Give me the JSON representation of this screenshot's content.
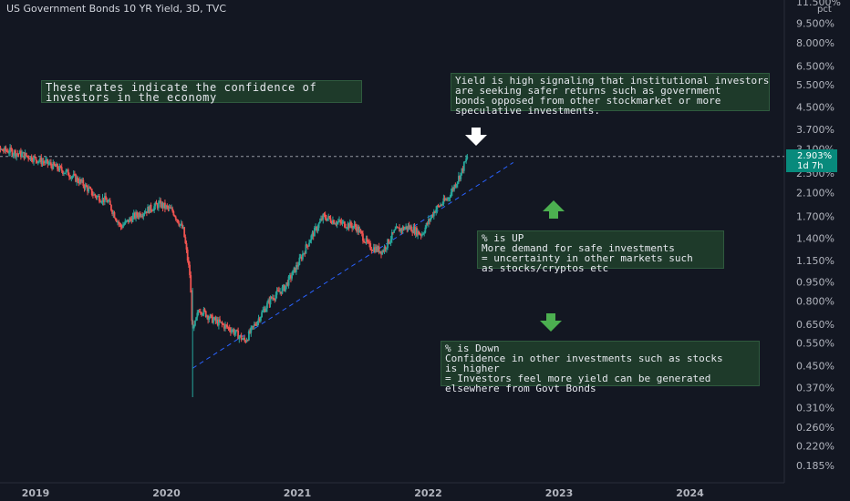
{
  "title": "US Government Bonds 10 YR Yield, 3D, TVC",
  "price_label": {
    "value": "2.903%",
    "countdown": "1d 7h"
  },
  "unit": "pct",
  "annotations": {
    "confidence": [
      "These rates indicate the confidence of",
      "investors in the economy"
    ],
    "yield_high": [
      "Yield is high signaling that institutional investors",
      "are seeking safer returns such as government",
      "bonds opposed from other stockmarket or more",
      "speculative investments."
    ],
    "pct_up": [
      "% is UP",
      "More demand for safe investments",
      "= uncertainty in other markets such",
      "as stocks/cryptos etc"
    ],
    "pct_down": [
      "% is Down",
      "Confidence in other investments such as stocks",
      "is higher",
      "= Investors feel more yield can be generated",
      "elsewhere from Govt Bonds"
    ]
  },
  "colors": {
    "up": "#26a69a",
    "down": "#ef5350",
    "background": "#131722",
    "arrow_green": "#4caf50",
    "arrow_white": "#ffffff",
    "trendline": "#2962ff",
    "note_bg": "#1e3a2a"
  },
  "chart_data": {
    "type": "candlestick",
    "title": "US Government Bonds 10 YR Yield, 3D, TVC",
    "y_scale": "log",
    "ylim": [
      0.17,
      11.5
    ],
    "x_ticks": [
      "2019",
      "2020",
      "2021",
      "2022",
      "2023",
      "2024"
    ],
    "y_ticks": [
      "11.500%",
      "9.500%",
      "8.000%",
      "6.500%",
      "5.500%",
      "4.500%",
      "3.700%",
      "3.100%",
      "2.500%",
      "2.100%",
      "1.700%",
      "1.400%",
      "1.150%",
      "0.950%",
      "0.800%",
      "0.650%",
      "0.550%",
      "0.450%",
      "0.370%",
      "0.310%",
      "0.260%",
      "0.220%",
      "0.185%"
    ],
    "y_tick_values": [
      11.5,
      9.5,
      8.0,
      6.5,
      5.5,
      4.5,
      3.7,
      3.1,
      2.5,
      2.1,
      1.7,
      1.4,
      1.15,
      0.95,
      0.8,
      0.65,
      0.55,
      0.45,
      0.37,
      0.31,
      0.26,
      0.22,
      0.185
    ],
    "last_value": 2.903,
    "price_line": 2.903,
    "series": [
      {
        "name": "",
        "values": [
          {
            "t": 2018.6,
            "v": 3.1
          },
          {
            "t": 2018.8,
            "v": 3.05
          },
          {
            "t": 2018.95,
            "v": 2.9
          },
          {
            "t": 2019.1,
            "v": 2.72
          },
          {
            "t": 2019.25,
            "v": 2.5
          },
          {
            "t": 2019.35,
            "v": 2.3
          },
          {
            "t": 2019.45,
            "v": 2.05
          },
          {
            "t": 2019.55,
            "v": 1.95
          },
          {
            "t": 2019.65,
            "v": 1.55
          },
          {
            "t": 2019.75,
            "v": 1.7
          },
          {
            "t": 2019.85,
            "v": 1.8
          },
          {
            "t": 2019.95,
            "v": 1.9
          },
          {
            "t": 2020.05,
            "v": 1.78
          },
          {
            "t": 2020.13,
            "v": 1.5
          },
          {
            "t": 2020.18,
            "v": 1.0
          },
          {
            "t": 2020.2,
            "v": 0.6
          },
          {
            "t": 2020.25,
            "v": 0.75
          },
          {
            "t": 2020.35,
            "v": 0.68
          },
          {
            "t": 2020.5,
            "v": 0.62
          },
          {
            "t": 2020.6,
            "v": 0.56
          },
          {
            "t": 2020.7,
            "v": 0.68
          },
          {
            "t": 2020.8,
            "v": 0.82
          },
          {
            "t": 2020.9,
            "v": 0.9
          },
          {
            "t": 2021.0,
            "v": 1.1
          },
          {
            "t": 2021.1,
            "v": 1.4
          },
          {
            "t": 2021.2,
            "v": 1.7
          },
          {
            "t": 2021.3,
            "v": 1.62
          },
          {
            "t": 2021.45,
            "v": 1.55
          },
          {
            "t": 2021.55,
            "v": 1.3
          },
          {
            "t": 2021.65,
            "v": 1.25
          },
          {
            "t": 2021.75,
            "v": 1.5
          },
          {
            "t": 2021.85,
            "v": 1.55
          },
          {
            "t": 2021.95,
            "v": 1.45
          },
          {
            "t": 2022.05,
            "v": 1.8
          },
          {
            "t": 2022.15,
            "v": 2.0
          },
          {
            "t": 2022.25,
            "v": 2.5
          },
          {
            "t": 2022.3,
            "v": 2.9
          }
        ]
      }
    ],
    "trendline": {
      "start": {
        "t": 2020.2,
        "v": 0.44
      },
      "end": {
        "t": 2022.65,
        "v": 2.75
      },
      "style": "dashed"
    }
  }
}
